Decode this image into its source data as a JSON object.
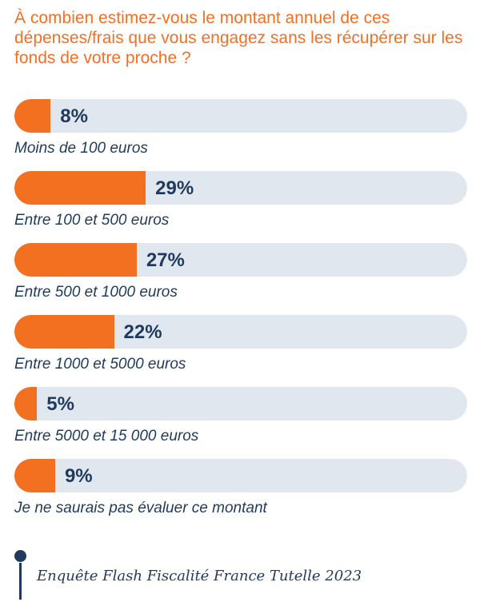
{
  "chart_data": {
    "type": "bar",
    "orientation": "horizontal",
    "title": "À combien estimez-vous le montant annuel de ces dépenses/frais que vous engagez sans les récupérer sur les fonds de votre proche ?",
    "categories": [
      "Moins de 100 euros",
      "Entre 100 et 500 euros",
      "Entre 500 et 1000 euros",
      "Entre 1000 et 5000 euros",
      "Entre 5000 et 15 000 euros",
      "Je ne saurais pas évaluer ce montant"
    ],
    "values": [
      8,
      29,
      27,
      22,
      5,
      9
    ],
    "value_labels": [
      "8%",
      "29%",
      "27%",
      "22%",
      "5%",
      "9%"
    ],
    "unit": "%",
    "xlim": [
      0,
      100
    ],
    "grid": false,
    "colors": {
      "bar": "#f37021",
      "track": "#e1e7ef",
      "label": "#1f3a5c",
      "title": "#f07024"
    }
  },
  "source": "Enquête Flash Fiscalité France Tutelle 2023"
}
